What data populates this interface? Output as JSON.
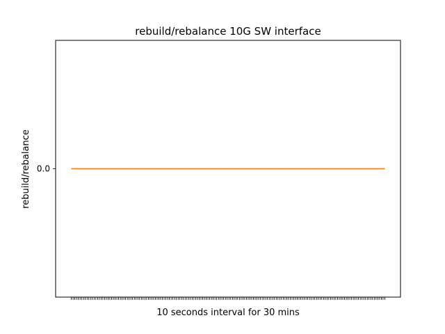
{
  "chart_data": {
    "type": "line",
    "title": "rebuild/rebalance 10G SW interface",
    "xlabel": "10 seconds interval for 30 mins",
    "ylabel": "rebuild/rebalance",
    "x_count": 180,
    "xlim": [
      -8.95,
      187.95
    ],
    "ylim": [
      -0.055,
      0.055
    ],
    "y_ticks": [
      0.0
    ],
    "y_tick_labels": [
      "0.0"
    ],
    "x_tick_labels_visible": false,
    "grid": false,
    "legend": "none",
    "series": [
      {
        "values_constant": 0.0,
        "color": "#ff7f0e"
      }
    ]
  }
}
